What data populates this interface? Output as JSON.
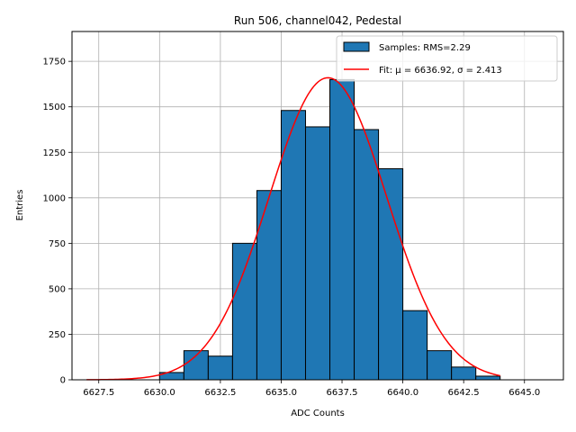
{
  "chart_data": {
    "type": "bar",
    "title": "Run 506, channel042, Pedestal",
    "xlabel": "ADC Counts",
    "ylabel": "Entries",
    "xlim": [
      6626.4,
      6646.6
    ],
    "ylim": [
      0,
      1914
    ],
    "xticks": [
      6627.5,
      6630.0,
      6632.5,
      6635.0,
      6637.5,
      6640.0,
      6642.5,
      6645.0
    ],
    "xtick_labels": [
      "6627.5",
      "6630.0",
      "6632.5",
      "6635.0",
      "6637.5",
      "6640.0",
      "6642.5",
      "6645.0"
    ],
    "yticks": [
      0,
      250,
      500,
      750,
      1000,
      1250,
      1500,
      1750
    ],
    "ytick_labels": [
      "0",
      "250",
      "500",
      "750",
      "1000",
      "1250",
      "1500",
      "1750"
    ],
    "grid": true,
    "bin_edges": [
      6630,
      6631,
      6632,
      6633,
      6634,
      6635,
      6636,
      6637,
      6638,
      6639,
      6640,
      6641,
      6642,
      6643,
      6644
    ],
    "bin_values": [
      40,
      160,
      130,
      750,
      1040,
      1480,
      1390,
      1650,
      1375,
      1160,
      380,
      160,
      70,
      20
    ],
    "histogram_label": "Samples: RMS=2.29",
    "fit": {
      "label": "Fit: μ = 6636.92, σ = 2.413",
      "mu": 6636.92,
      "sigma": 2.413,
      "amplitude": 1660,
      "x_range": [
        6627.0,
        6644.0
      ]
    },
    "legend_position": "upper right",
    "colors": {
      "bars": "#1f77b4",
      "fit_line": "#ff0000"
    }
  }
}
